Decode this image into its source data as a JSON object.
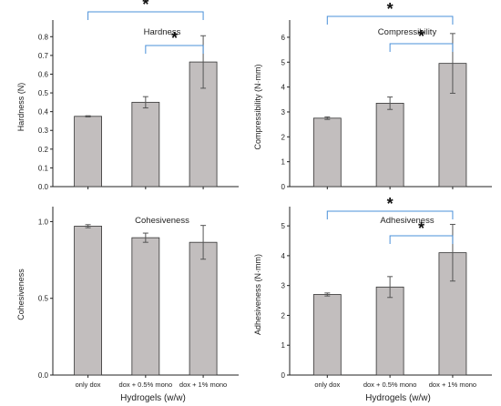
{
  "chart_data": [
    {
      "type": "bar",
      "title": "Hardness",
      "ylabel": "Hardness (N)",
      "xlabel": "",
      "categories": [
        "",
        "",
        ""
      ],
      "values": [
        0.375,
        0.45,
        0.665
      ],
      "errors": [
        0.003,
        0.03,
        0.14
      ],
      "ylim": [
        0,
        0.85
      ],
      "yticks": [
        "0.0",
        "0.1",
        "0.2",
        "0.3",
        "0.4",
        "0.5",
        "0.6",
        "0.7",
        "0.8"
      ],
      "significance": [
        {
          "from": 0,
          "to": 2,
          "label": "*"
        },
        {
          "from": 1,
          "to": 2,
          "label": "*"
        }
      ]
    },
    {
      "type": "bar",
      "title": "Compressibility",
      "ylabel": "Compressibility (N·mm)",
      "xlabel": "",
      "categories": [
        "",
        "",
        ""
      ],
      "values": [
        2.75,
        3.35,
        4.95
      ],
      "errors": [
        0.05,
        0.25,
        1.2
      ],
      "ylim": [
        0,
        6.4
      ],
      "yticks": [
        "0",
        "1",
        "2",
        "3",
        "4",
        "5",
        "6"
      ],
      "significance": [
        {
          "from": 0,
          "to": 2,
          "label": "*"
        },
        {
          "from": 1,
          "to": 2,
          "label": "*"
        }
      ]
    },
    {
      "type": "bar",
      "title": "Cohesiveness",
      "ylabel": "Cohesiveness",
      "xlabel": "Hydrogels (w/w)",
      "categories": [
        "only dox",
        "dox + 0.5% mono",
        "dox + 1% mono"
      ],
      "values": [
        0.97,
        0.895,
        0.865
      ],
      "errors": [
        0.01,
        0.03,
        0.11
      ],
      "ylim": [
        0,
        1.05
      ],
      "yticks": [
        "0.0",
        "0.5",
        "1.0"
      ],
      "significance": []
    },
    {
      "type": "bar",
      "title": "Adhesiveness",
      "ylabel": "Adhesiveness (N·mm)",
      "xlabel": "Hydrogels (w/w)",
      "categories": [
        "only dox",
        "dox + 0.5% mono",
        "dox + 1% mono"
      ],
      "values": [
        2.7,
        2.95,
        4.1
      ],
      "errors": [
        0.05,
        0.35,
        0.95
      ],
      "ylim": [
        0,
        5.4
      ],
      "yticks": [
        "0",
        "1",
        "2",
        "3",
        "4",
        "5"
      ],
      "significance": [
        {
          "from": 0,
          "to": 2,
          "label": "*"
        },
        {
          "from": 1,
          "to": 2,
          "label": "*"
        }
      ]
    }
  ]
}
